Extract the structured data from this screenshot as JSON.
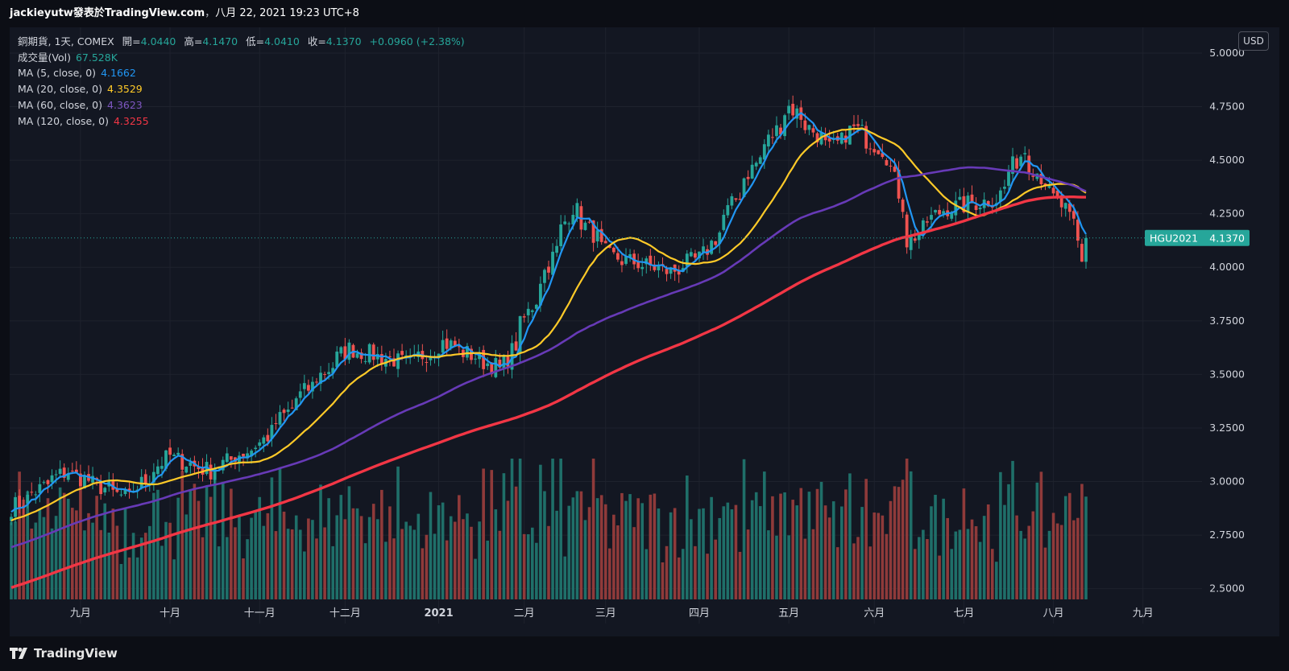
{
  "header": {
    "author": "jackieyutw",
    "published_on": "發表於TradingView.com",
    "separator": "，",
    "timestamp": "八月 22, 2021 19:23 UTC+8"
  },
  "legend": {
    "symbol": "銅期貨, 1天, COMEX",
    "open_label": "開=",
    "open": "4.0440",
    "high_label": "高=",
    "high": "4.1470",
    "low_label": "低=",
    "low": "4.0410",
    "close_label": "收=",
    "close": "4.1370",
    "change": "+0.0960 (+2.38%)",
    "volume_label": "成交量(Vol)",
    "volume": "67.528K",
    "ma5_label": "MA (5, close, 0)",
    "ma5": "4.1662",
    "ma20_label": "MA (20, close, 0)",
    "ma20": "4.3529",
    "ma60_label": "MA (60, close, 0)",
    "ma60": "4.3623",
    "ma120_label": "MA (120, close, 0)",
    "ma120": "4.3255"
  },
  "currency_button": "USD",
  "price_tag": {
    "symbol": "HGU2021",
    "price": "4.1370"
  },
  "footer": {
    "brand": "TradingView"
  },
  "colors": {
    "up": "#26a69a",
    "down": "#ef5350",
    "ma5": "#2196f3",
    "ma20": "#ffca28",
    "ma60": "#673ab7",
    "ma120": "#f23645",
    "background": "#131722",
    "grid": "#1e222d"
  },
  "chart_data": {
    "type": "candlestick",
    "title": "銅期貨, 1天, COMEX",
    "y_axis_ticks": [
      "5.0000",
      "4.7500",
      "4.5000",
      "4.2500",
      "4.0000",
      "3.7500",
      "3.5000",
      "3.2500",
      "3.0000",
      "2.7500",
      "2.5000"
    ],
    "ylim": [
      2.45,
      5.12
    ],
    "x_axis_labels": [
      "九月",
      "十月",
      "十一月",
      "十二月",
      "2021",
      "二月",
      "三月",
      "四月",
      "五月",
      "六月",
      "七月",
      "八月",
      "九月"
    ],
    "date_range": [
      "2020-08-17",
      "2021-08-20"
    ],
    "grid": true,
    "price_anchors": [
      [
        "2020-08-17",
        2.88
      ],
      [
        "2020-09-04",
        3.05
      ],
      [
        "2020-09-25",
        2.92
      ],
      [
        "2020-10-09",
        3.12
      ],
      [
        "2020-10-23",
        3.05
      ],
      [
        "2020-11-10",
        3.18
      ],
      [
        "2020-11-25",
        3.42
      ],
      [
        "2020-12-10",
        3.62
      ],
      [
        "2020-12-31",
        3.55
      ],
      [
        "2021-01-12",
        3.65
      ],
      [
        "2021-02-01",
        3.52
      ],
      [
        "2021-02-12",
        3.85
      ],
      [
        "2021-02-25",
        4.28
      ],
      [
        "2021-03-10",
        4.05
      ],
      [
        "2021-03-31",
        3.98
      ],
      [
        "2021-04-12",
        4.06
      ],
      [
        "2021-04-26",
        4.42
      ],
      [
        "2021-05-11",
        4.75
      ],
      [
        "2021-05-25",
        4.55
      ],
      [
        "2021-06-02",
        4.65
      ],
      [
        "2021-06-14",
        4.52
      ],
      [
        "2021-06-21",
        4.12
      ],
      [
        "2021-07-02",
        4.27
      ],
      [
        "2021-07-21",
        4.32
      ],
      [
        "2021-07-30",
        4.55
      ],
      [
        "2021-08-10",
        4.32
      ],
      [
        "2021-08-17",
        4.2
      ],
      [
        "2021-08-19",
        4.02
      ],
      [
        "2021-08-20",
        4.137
      ]
    ],
    "last_close": 4.137
  }
}
